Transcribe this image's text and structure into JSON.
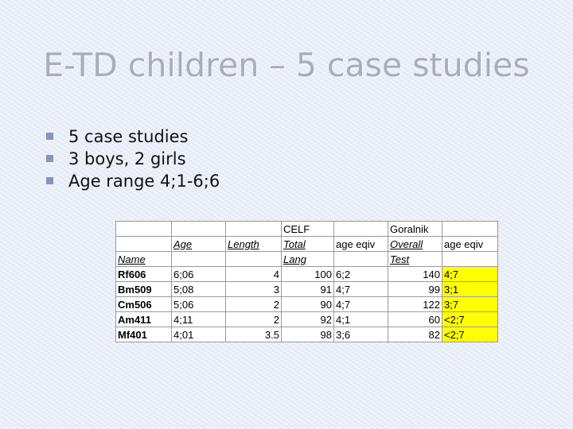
{
  "slide": {
    "title": "E-TD children – 5 case studies",
    "bullets": [
      "5 case studies",
      "3 boys, 2 girls",
      "Age range 4;1-6;6"
    ],
    "bullet_color": "#8794bd"
  },
  "table": {
    "group_headers": [
      "",
      "",
      "",
      "CELF",
      "",
      "Goralnik",
      ""
    ],
    "headers_row1": [
      "",
      "Age",
      "Length",
      "Total",
      "age eqiv",
      "Overall",
      "age eqiv"
    ],
    "headers_row2": [
      "Name",
      "",
      "",
      "Lang",
      "",
      "Test",
      ""
    ],
    "rows": [
      {
        "name": "Rf606",
        "age": "6;06",
        "length": "4",
        "celf_total": "100",
        "celf_age": "6;2",
        "goralnik": "140",
        "goralnik_age": "4;7"
      },
      {
        "name": "Bm509",
        "age": "5;08",
        "length": "3",
        "celf_total": "91",
        "celf_age": "4;7",
        "goralnik": "99",
        "goralnik_age": "3;1"
      },
      {
        "name": "Cm506",
        "age": "5;06",
        "length": "2",
        "celf_total": "90",
        "celf_age": "4;7",
        "goralnik": "122",
        "goralnik_age": "3;7"
      },
      {
        "name": "Am411",
        "age": "4;11",
        "length": "2",
        "celf_total": "92",
        "celf_age": "4;1",
        "goralnik": "60",
        "goralnik_age": "<2;7"
      },
      {
        "name": "Mf401",
        "age": "4;01",
        "length": "3.5",
        "celf_total": "98",
        "celf_age": "3;6",
        "goralnik": "82",
        "goralnik_age": "<2;7"
      }
    ],
    "highlight_color": "#ffff00"
  }
}
